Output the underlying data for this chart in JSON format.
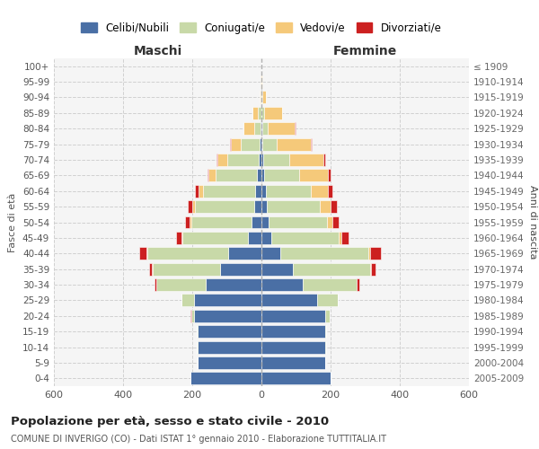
{
  "age_groups": [
    "0-4",
    "5-9",
    "10-14",
    "15-19",
    "20-24",
    "25-29",
    "30-34",
    "35-39",
    "40-44",
    "45-49",
    "50-54",
    "55-59",
    "60-64",
    "65-69",
    "70-74",
    "75-79",
    "80-84",
    "85-89",
    "90-94",
    "95-99",
    "100+"
  ],
  "birth_years": [
    "2005-2009",
    "2000-2004",
    "1995-1999",
    "1990-1994",
    "1985-1989",
    "1980-1984",
    "1975-1979",
    "1970-1974",
    "1965-1969",
    "1960-1964",
    "1955-1959",
    "1950-1954",
    "1945-1949",
    "1940-1944",
    "1935-1939",
    "1930-1934",
    "1925-1929",
    "1920-1924",
    "1915-1919",
    "1910-1914",
    "≤ 1909"
  ],
  "colors": {
    "celibi": "#4a6fa5",
    "coniugati": "#c8d9a8",
    "vedovi": "#f5c97a",
    "divorziati": "#cc2020"
  },
  "males": {
    "celibi": [
      205,
      185,
      185,
      185,
      195,
      195,
      160,
      120,
      95,
      38,
      28,
      22,
      18,
      12,
      8,
      4,
      2,
      1,
      0,
      0,
      0
    ],
    "coniugati": [
      0,
      0,
      1,
      2,
      8,
      35,
      145,
      195,
      235,
      190,
      175,
      170,
      150,
      120,
      90,
      55,
      20,
      10,
      3,
      1,
      0
    ],
    "vedovi": [
      0,
      0,
      0,
      0,
      0,
      0,
      0,
      1,
      2,
      3,
      5,
      8,
      15,
      20,
      30,
      30,
      30,
      15,
      3,
      1,
      0
    ],
    "divorziati": [
      0,
      0,
      0,
      0,
      1,
      2,
      5,
      8,
      20,
      15,
      12,
      12,
      10,
      5,
      3,
      2,
      1,
      0,
      0,
      0,
      0
    ]
  },
  "females": {
    "celibi": [
      200,
      185,
      185,
      185,
      185,
      160,
      120,
      90,
      55,
      28,
      20,
      15,
      12,
      8,
      5,
      3,
      2,
      1,
      0,
      0,
      0
    ],
    "coniugati": [
      0,
      0,
      1,
      2,
      12,
      60,
      155,
      225,
      255,
      195,
      170,
      155,
      130,
      100,
      75,
      40,
      15,
      8,
      2,
      0,
      0
    ],
    "vedovi": [
      0,
      0,
      0,
      0,
      0,
      0,
      0,
      2,
      5,
      8,
      15,
      30,
      50,
      85,
      100,
      100,
      80,
      50,
      12,
      3,
      1
    ],
    "divorziati": [
      0,
      0,
      0,
      0,
      1,
      2,
      8,
      12,
      30,
      22,
      18,
      18,
      12,
      8,
      5,
      3,
      2,
      1,
      0,
      0,
      0
    ]
  },
  "title": "Popolazione per età, sesso e stato civile - 2010",
  "subtitle": "COMUNE DI INVERIGO (CO) - Dati ISTAT 1° gennaio 2010 - Elaborazione TUTTITALIA.IT",
  "xlabel_left": "Maschi",
  "xlabel_right": "Femmine",
  "ylabel_left": "Fasce di età",
  "ylabel_right": "Anni di nascita",
  "xlim": 600,
  "legend_labels": [
    "Celibi/Nubili",
    "Coniugati/e",
    "Vedovi/e",
    "Divorziati/e"
  ],
  "bg_color": "#f5f5f5",
  "grid_color": "#cccccc"
}
